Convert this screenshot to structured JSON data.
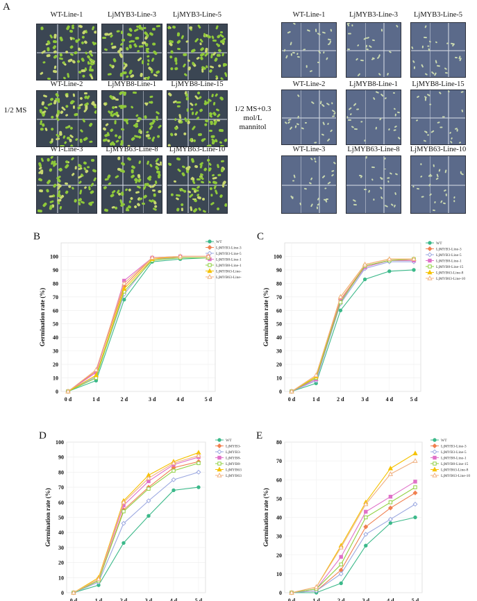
{
  "figure": {
    "panel_a": {
      "letter": "A",
      "left_condition": "1/2 MS",
      "right_condition_lines": [
        "1/2 MS+0.3",
        "mol/L",
        "mannitol"
      ],
      "plate_labels": [
        [
          "WT-Line-1",
          "LjMYB3-Line-3",
          "LjMYB3-Line-5"
        ],
        [
          "WT-Line-2",
          "LjMYB8-Line-1",
          "LjMYB8-Line-15"
        ],
        [
          "WT-Line-3",
          "LjMYB63-Line-8",
          "LjMYB63-Line-10"
        ]
      ]
    }
  },
  "colors": {
    "WT": "#3cb98a",
    "LjMYB3-Line-3": "#f08050",
    "LjMYB3-Line-5": "#9aa7e0",
    "LjMYB8-Line-1": "#e070c8",
    "LjMYB8-Line-15": "#8fd040",
    "LjMYB63-Line-8": "#f5c200",
    "LjMYB63-Line-10": "#f0b080"
  },
  "chart_data": [
    {
      "panel": "B",
      "type": "line",
      "title": "",
      "xlabel": "",
      "ylabel": "Germination rate (%)",
      "categories": [
        "0 d",
        "1 d",
        "2 d",
        "3 d",
        "4 d",
        "5 d"
      ],
      "yticks": [
        0,
        10,
        20,
        30,
        40,
        50,
        60,
        70,
        80,
        90,
        100
      ],
      "ylim": [
        0,
        110
      ],
      "grid": true,
      "legend_position": "top-right",
      "series": [
        {
          "name": "WT",
          "values": [
            0,
            8,
            68,
            96,
            98,
            99
          ]
        },
        {
          "name": "LjMYB3-Line-3",
          "values": [
            0,
            15,
            78,
            99,
            99,
            99
          ]
        },
        {
          "name": "LjMYB3-Line-5",
          "values": [
            0,
            11,
            72,
            98,
            99,
            99
          ]
        },
        {
          "name": "LjMYB8-Line-1",
          "values": [
            0,
            14,
            82,
            99,
            100,
            100
          ]
        },
        {
          "name": "LjMYB8-Line-1",
          "values": [
            0,
            10,
            74,
            97,
            99,
            99
          ]
        },
        {
          "name": "LjMYB63-Line-",
          "values": [
            0,
            12,
            76,
            98,
            100,
            100
          ]
        },
        {
          "name": "LjMYB63-Line-",
          "values": [
            0,
            16,
            80,
            99,
            100,
            100
          ]
        }
      ]
    },
    {
      "panel": "C",
      "type": "line",
      "title": "",
      "xlabel": "",
      "ylabel": "Germination rate (%)",
      "categories": [
        "0 d",
        "1 d",
        "2 d",
        "3 d",
        "4 d",
        "5 d"
      ],
      "yticks": [
        0,
        10,
        20,
        30,
        40,
        50,
        60,
        70,
        80,
        90,
        100
      ],
      "ylim": [
        0,
        110
      ],
      "grid": true,
      "legend_position": "top-right",
      "series": [
        {
          "name": "WT",
          "values": [
            0,
            6,
            60,
            83,
            89,
            90
          ]
        },
        {
          "name": "LjMYB3-Line-3",
          "values": [
            0,
            10,
            68,
            93,
            97,
            97
          ]
        },
        {
          "name": "LjMYB3-Line-5",
          "values": [
            0,
            8,
            65,
            91,
            96,
            96
          ]
        },
        {
          "name": "LjMYB8-Line-1",
          "values": [
            0,
            9,
            67,
            92,
            97,
            97
          ]
        },
        {
          "name": "LjMYB8-Line-15",
          "values": [
            0,
            10,
            66,
            93,
            97,
            98
          ]
        },
        {
          "name": "LjMYB63-Line-8",
          "values": [
            0,
            11,
            70,
            94,
            98,
            98
          ]
        },
        {
          "name": "LjMYB63-Line-10",
          "values": [
            0,
            12,
            70,
            94,
            98,
            98
          ]
        }
      ]
    },
    {
      "panel": "D",
      "type": "line",
      "title": "",
      "xlabel": "",
      "ylabel": "Germination rate (%)",
      "categories": [
        "0 d",
        "1 d",
        "2 d",
        "3 d",
        "4 d",
        "5 d"
      ],
      "yticks": [
        0,
        10,
        20,
        30,
        40,
        50,
        60,
        70,
        80,
        90,
        100
      ],
      "ylim": [
        0,
        100
      ],
      "grid": true,
      "legend_position": "top-right",
      "series": [
        {
          "name": "WT",
          "values": [
            0,
            5,
            33,
            51,
            68,
            70
          ]
        },
        {
          "name": "LjMYB3-",
          "values": [
            0,
            8,
            55,
            70,
            83,
            87
          ]
        },
        {
          "name": "LjMYB3-",
          "values": [
            0,
            7,
            46,
            61,
            75,
            80
          ]
        },
        {
          "name": "LjMYB8-",
          "values": [
            0,
            9,
            58,
            74,
            85,
            90
          ]
        },
        {
          "name": "LjMYB8-",
          "values": [
            0,
            8,
            54,
            69,
            81,
            86
          ]
        },
        {
          "name": "LjMYB63",
          "values": [
            0,
            10,
            61,
            78,
            87,
            93
          ]
        },
        {
          "name": "LjMYB63",
          "values": [
            0,
            9,
            60,
            76,
            86,
            91
          ]
        }
      ]
    },
    {
      "panel": "E",
      "type": "line",
      "title": "",
      "xlabel": "",
      "ylabel": "Germination rate (%)",
      "categories": [
        "0 d",
        "1 d",
        "2 d",
        "3 d",
        "4 d",
        "5 d"
      ],
      "yticks": [
        0,
        10,
        20,
        30,
        40,
        50,
        60,
        70,
        80
      ],
      "ylim": [
        0,
        80
      ],
      "grid": true,
      "legend_position": "top-right",
      "series": [
        {
          "name": "WT",
          "values": [
            0,
            0,
            5,
            25,
            37,
            40
          ]
        },
        {
          "name": "LjMYB3-Line-3",
          "values": [
            0,
            1,
            12,
            35,
            45,
            53
          ]
        },
        {
          "name": "LjMYB3-Line-5",
          "values": [
            0,
            1,
            10,
            31,
            39,
            47
          ]
        },
        {
          "name": "LjMYB8-Line-1",
          "values": [
            0,
            2,
            19,
            43,
            51,
            59
          ]
        },
        {
          "name": "LjMYB8-Line-15",
          "values": [
            0,
            2,
            15,
            40,
            48,
            56
          ]
        },
        {
          "name": "LjMYB63-Line-8",
          "values": [
            0,
            3,
            25,
            48,
            66,
            74
          ]
        },
        {
          "name": "LjMYB63-Line-10",
          "values": [
            0,
            3,
            24,
            47,
            63,
            70
          ]
        }
      ]
    }
  ]
}
